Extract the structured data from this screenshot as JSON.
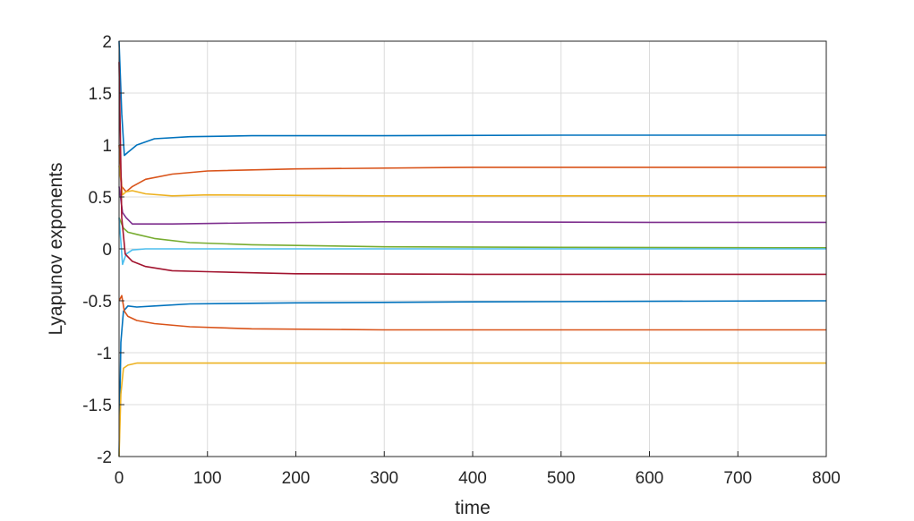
{
  "chart_data": {
    "type": "line",
    "title": "",
    "xlabel": "time",
    "ylabel": "Lyapunov exponents",
    "xlim": [
      0,
      800
    ],
    "ylim": [
      -2,
      2
    ],
    "xticks": [
      0,
      100,
      200,
      300,
      400,
      500,
      600,
      700,
      800
    ],
    "yticks": [
      -2,
      -1.5,
      -1,
      -0.5,
      0,
      0.5,
      1,
      1.5,
      2
    ],
    "ytick_labels": [
      "-2",
      "-1.5",
      "-1",
      "-0.5",
      "0",
      "0.5",
      "1",
      "1.5",
      "2"
    ],
    "grid": true,
    "series": [
      {
        "color": "#0072BD",
        "x": [
          0,
          3,
          6,
          10,
          20,
          40,
          80,
          150,
          300,
          500,
          800
        ],
        "y": [
          2,
          1.3,
          0.9,
          0.93,
          1.0,
          1.06,
          1.08,
          1.09,
          1.09,
          1.095,
          1.095
        ]
      },
      {
        "color": "#D95319",
        "x": [
          0,
          3,
          8,
          15,
          30,
          60,
          100,
          200,
          400,
          800
        ],
        "y": [
          1.0,
          0.6,
          0.55,
          0.6,
          0.67,
          0.72,
          0.75,
          0.77,
          0.785,
          0.785
        ]
      },
      {
        "color": "#EDB120",
        "x": [
          0,
          4,
          8,
          15,
          30,
          60,
          100,
          300,
          800
        ],
        "y": [
          0.8,
          0.52,
          0.55,
          0.56,
          0.53,
          0.51,
          0.52,
          0.51,
          0.51
        ]
      },
      {
        "color": "#7E2F8E",
        "x": [
          0,
          4,
          8,
          15,
          30,
          60,
          150,
          300,
          600,
          800
        ],
        "y": [
          0.6,
          0.35,
          0.3,
          0.24,
          0.24,
          0.24,
          0.25,
          0.26,
          0.255,
          0.255
        ]
      },
      {
        "color": "#77AC30",
        "x": [
          0,
          5,
          10,
          20,
          40,
          80,
          150,
          300,
          500,
          800
        ],
        "y": [
          0.3,
          0.2,
          0.16,
          0.14,
          0.1,
          0.06,
          0.04,
          0.02,
          0.015,
          0.01
        ]
      },
      {
        "color": "#4DBEEE",
        "x": [
          0,
          4,
          8,
          15,
          30,
          80,
          300,
          800
        ],
        "y": [
          0.3,
          -0.15,
          -0.05,
          -0.01,
          0.0,
          0.0,
          0.0,
          0.0
        ]
      },
      {
        "color": "#A2142F",
        "x": [
          0,
          3,
          7,
          15,
          30,
          60,
          100,
          200,
          400,
          800
        ],
        "y": [
          1.8,
          0.3,
          -0.05,
          -0.12,
          -0.17,
          -0.21,
          -0.22,
          -0.24,
          -0.245,
          -0.245
        ]
      },
      {
        "color": "#0072BD",
        "x": [
          0,
          2,
          5,
          10,
          20,
          40,
          80,
          200,
          400,
          800
        ],
        "y": [
          -2,
          -0.9,
          -0.6,
          -0.55,
          -0.56,
          -0.55,
          -0.53,
          -0.52,
          -0.51,
          -0.5
        ]
      },
      {
        "color": "#D95319",
        "x": [
          0,
          3,
          6,
          10,
          20,
          40,
          80,
          150,
          300,
          800
        ],
        "y": [
          -0.5,
          -0.45,
          -0.6,
          -0.65,
          -0.69,
          -0.72,
          -0.75,
          -0.77,
          -0.78,
          -0.78
        ]
      },
      {
        "color": "#EDB120",
        "x": [
          0,
          2,
          5,
          10,
          20,
          40,
          100,
          300,
          800
        ],
        "y": [
          -2,
          -1.4,
          -1.15,
          -1.12,
          -1.1,
          -1.1,
          -1.1,
          -1.1,
          -1.1
        ]
      }
    ]
  }
}
